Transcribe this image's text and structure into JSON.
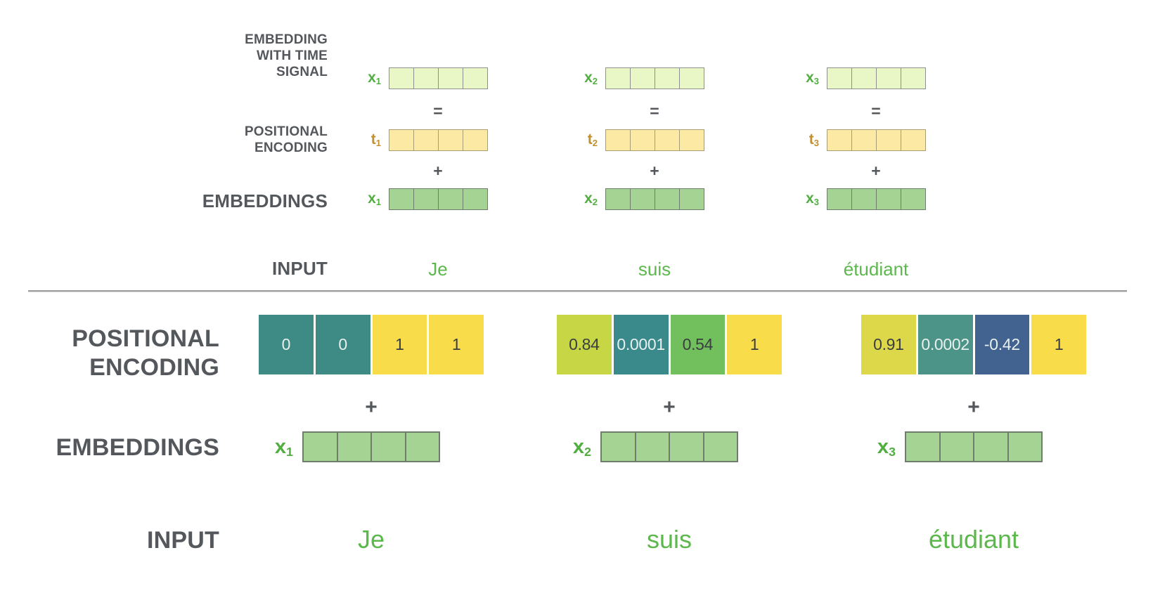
{
  "diagram": {
    "title": "positional-encoding-diagram",
    "top": {
      "row_labels": {
        "embedding_with_time_signal": [
          "EMBEDDING",
          "WITH TIME",
          "SIGNAL"
        ],
        "positional_encoding": [
          "POSITIONAL",
          "ENCODING"
        ],
        "embeddings": "EMBEDDINGS",
        "input": "INPUT"
      },
      "operators": {
        "equals": "=",
        "plus": "+"
      },
      "vector_size": 4,
      "columns": [
        {
          "word": "Je",
          "x_label": "x",
          "t_label": "t",
          "subscript": "1"
        },
        {
          "word": "suis",
          "x_label": "x",
          "t_label": "t",
          "subscript": "2"
        },
        {
          "word": "étudiant",
          "x_label": "x",
          "t_label": "t",
          "subscript": "3"
        }
      ]
    },
    "bottom": {
      "row_labels": {
        "positional_encoding": [
          "POSITIONAL",
          "ENCODING"
        ],
        "embeddings": "EMBEDDINGS",
        "input": "INPUT"
      },
      "plus": "+",
      "vector_size": 4,
      "columns": [
        {
          "word": "Je",
          "x_label": "x",
          "subscript": "1",
          "pe_cells": [
            {
              "value": "0",
              "bg": "#3e8b85",
              "tone": "light"
            },
            {
              "value": "0",
              "bg": "#3e8b85",
              "tone": "light"
            },
            {
              "value": "1",
              "bg": "#f8dc4a",
              "tone": "dark"
            },
            {
              "value": "1",
              "bg": "#f8dc4a",
              "tone": "dark"
            }
          ]
        },
        {
          "word": "suis",
          "x_label": "x",
          "subscript": "2",
          "pe_cells": [
            {
              "value": "0.84",
              "bg": "#c6d645",
              "tone": "dark"
            },
            {
              "value": "0.0001",
              "bg": "#3a8a8c",
              "tone": "light"
            },
            {
              "value": "0.54",
              "bg": "#72bf5e",
              "tone": "dark"
            },
            {
              "value": "1",
              "bg": "#f8dc4a",
              "tone": "dark"
            }
          ]
        },
        {
          "word": "étudiant",
          "x_label": "x",
          "subscript": "3",
          "pe_cells": [
            {
              "value": "0.91",
              "bg": "#ddd84a",
              "tone": "dark"
            },
            {
              "value": "0.0002",
              "bg": "#4d9488",
              "tone": "light"
            },
            {
              "value": "-0.42",
              "bg": "#42628f",
              "tone": "light"
            },
            {
              "value": "1",
              "bg": "#f8dc4a",
              "tone": "dark"
            }
          ]
        }
      ]
    },
    "colors": {
      "label_text": "#54585c",
      "operator_text": "#54585c",
      "x_label_green": "#52ae41",
      "t_label_gold": "#c2902f",
      "word_green": "#5cb84c",
      "embedding_cell": "#a4d393",
      "embedding_border": "#6f7d6c",
      "time_vector_cell": "#e9f6c5",
      "time_vector_border": "#8f8f8f",
      "pos_vector_cell": "#fce9a4",
      "pos_vector_border": "#a79d76",
      "divider": "#9e9e9e",
      "value_text_dark": "#3b3e40",
      "value_text_light": "#e8f0ed"
    }
  }
}
